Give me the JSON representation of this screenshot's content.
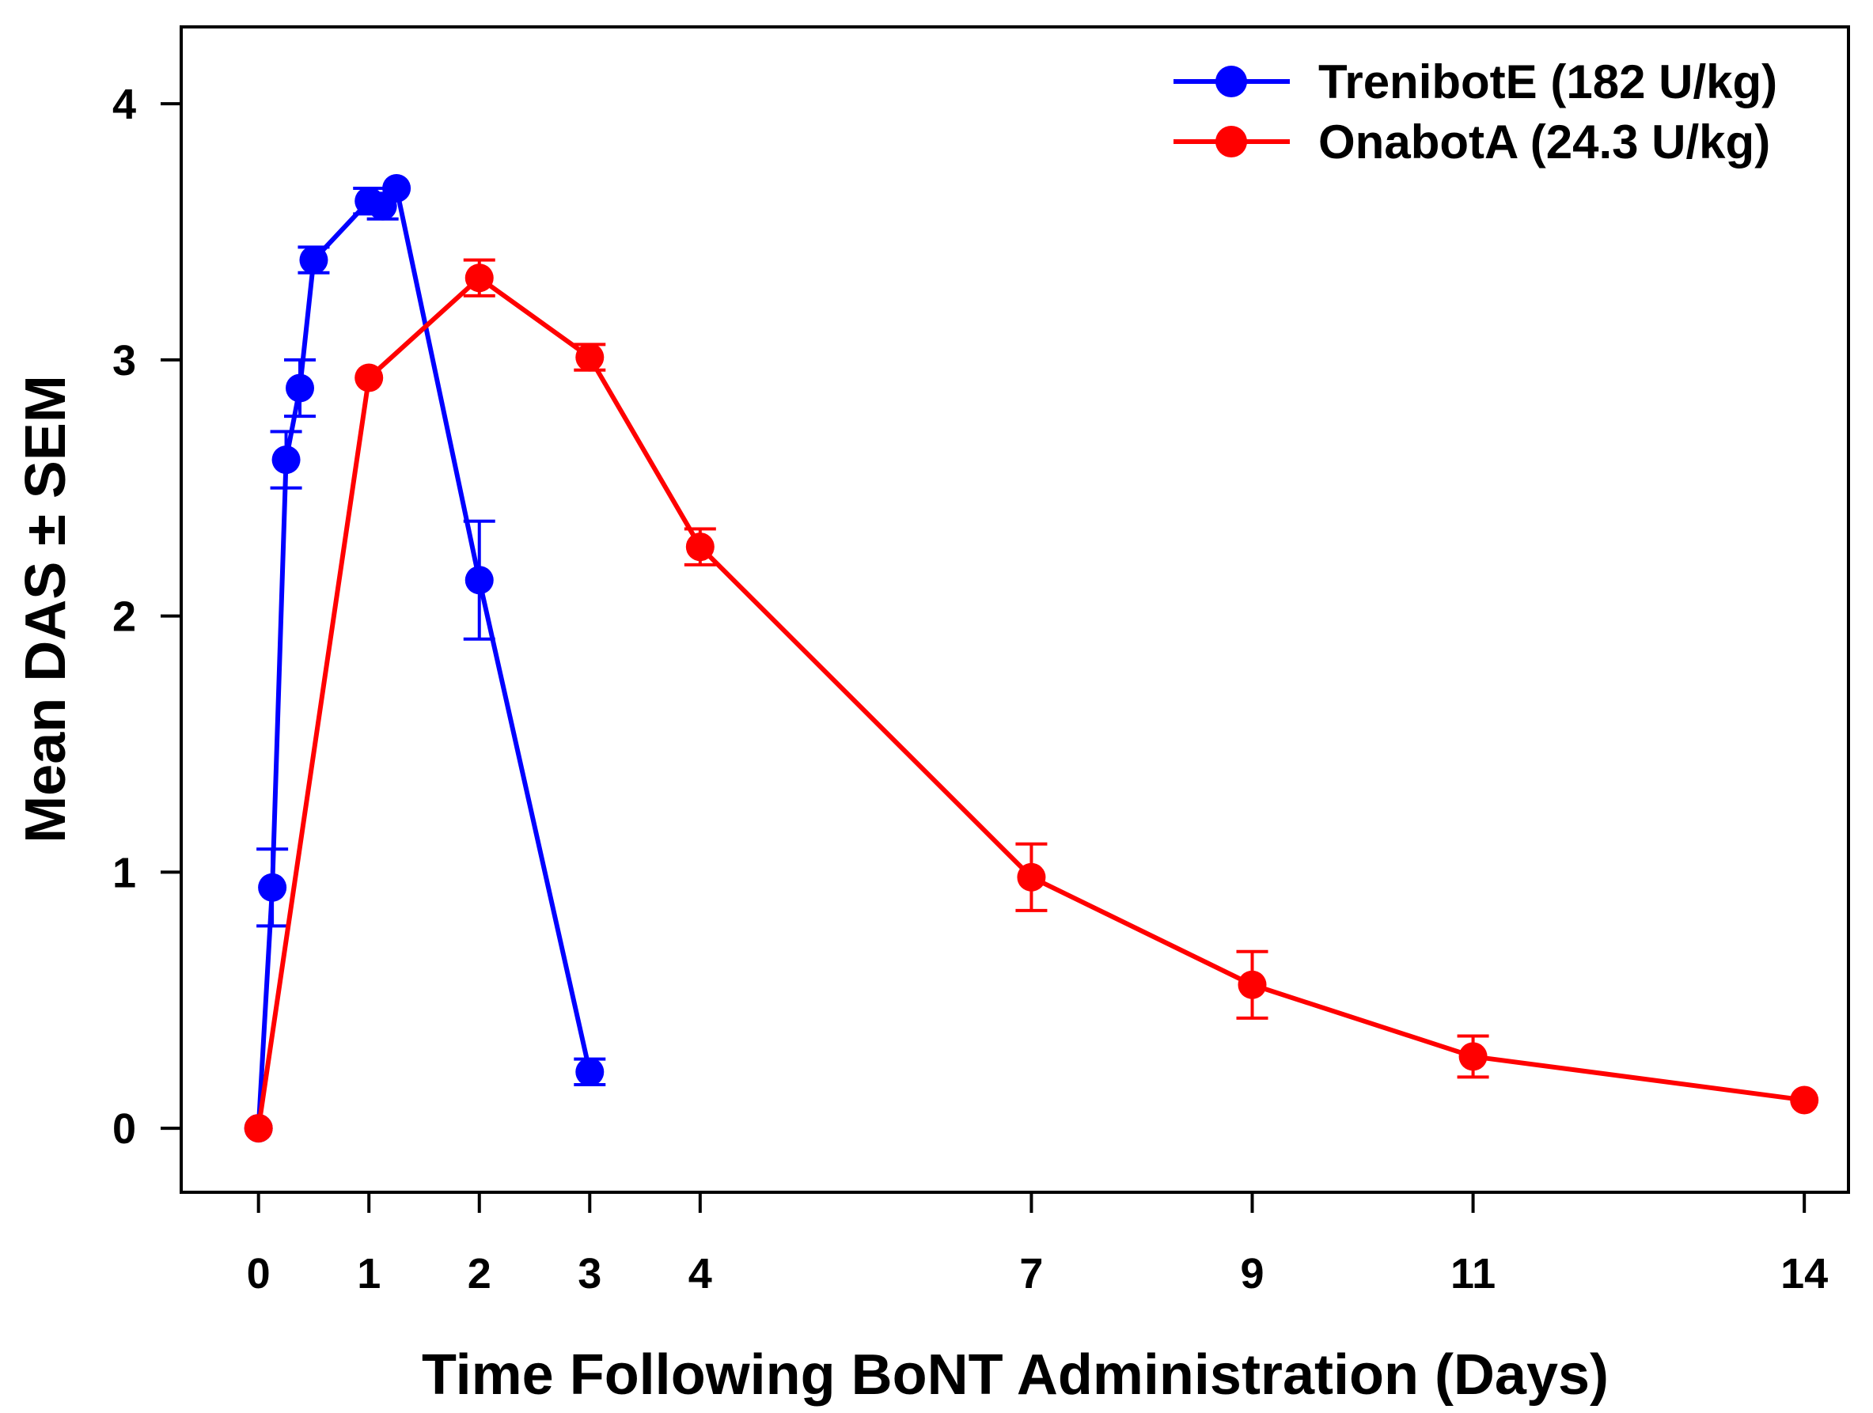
{
  "chart_data": {
    "type": "line",
    "title": "",
    "xlabel": "Time Following BoNT Administration (Days)",
    "ylabel": "Mean DAS ± SEM",
    "xlim": [
      -0.7,
      14.4
    ],
    "ylim": [
      -0.25,
      4.3
    ],
    "x_ticks": [
      0,
      1,
      2,
      3,
      4,
      7,
      9,
      11,
      14
    ],
    "y_ticks": [
      0,
      1,
      2,
      3,
      4
    ],
    "grid": false,
    "legend_position": "top-right",
    "series": [
      {
        "name": "TrenibotE (182 U/kg)",
        "color": "#0000ff",
        "x": [
          0,
          0.125,
          0.25,
          0.375,
          0.5,
          1,
          1.125,
          1.25,
          2,
          3
        ],
        "y": [
          0,
          0.94,
          2.61,
          2.89,
          3.39,
          3.62,
          3.6,
          3.67,
          2.14,
          0.22
        ],
        "sem": [
          0,
          0.15,
          0.11,
          0.11,
          0.05,
          0.05,
          0.05,
          0.0,
          0.23,
          0.05
        ]
      },
      {
        "name": "OnabotA (24.3 U/kg)",
        "color": "#ff0000",
        "x": [
          0,
          1,
          2,
          3,
          4,
          7,
          9,
          11,
          14
        ],
        "y": [
          0,
          2.93,
          3.32,
          3.01,
          2.27,
          0.98,
          0.56,
          0.28,
          0.11
        ],
        "sem": [
          0,
          0.0,
          0.07,
          0.05,
          0.07,
          0.13,
          0.13,
          0.08,
          0.0
        ]
      }
    ]
  }
}
